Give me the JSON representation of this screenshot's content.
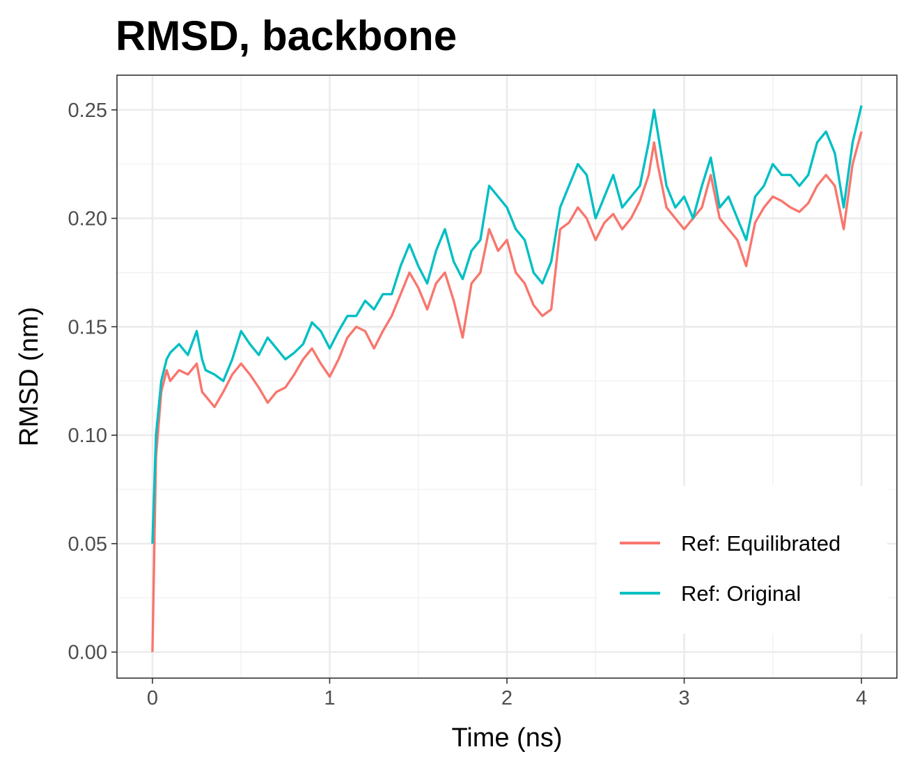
{
  "chart_data": {
    "type": "line",
    "title": "RMSD, backbone",
    "xlabel": "Time (ns)",
    "ylabel": "RMSD (nm)",
    "xlim": [
      -0.2,
      4.2
    ],
    "ylim": [
      -0.012,
      0.266
    ],
    "xticks": [
      0,
      1,
      2,
      3,
      4
    ],
    "xtick_labels": [
      "0",
      "1",
      "2",
      "3",
      "4"
    ],
    "yticks": [
      0.0,
      0.05,
      0.1,
      0.15,
      0.2,
      0.25
    ],
    "ytick_labels": [
      "0.00",
      "0.05",
      "0.10",
      "0.15",
      "0.20",
      "0.25"
    ],
    "grid": true,
    "legend_position": "bottom-right",
    "series": [
      {
        "name": "Ref: Equilibrated",
        "color": "#F8766D",
        "x": [
          0.0,
          0.02,
          0.05,
          0.08,
          0.1,
          0.15,
          0.2,
          0.25,
          0.28,
          0.3,
          0.35,
          0.4,
          0.45,
          0.5,
          0.55,
          0.6,
          0.65,
          0.7,
          0.75,
          0.8,
          0.85,
          0.9,
          0.95,
          1.0,
          1.05,
          1.1,
          1.15,
          1.2,
          1.25,
          1.3,
          1.35,
          1.4,
          1.45,
          1.5,
          1.55,
          1.6,
          1.65,
          1.7,
          1.75,
          1.8,
          1.85,
          1.9,
          1.95,
          2.0,
          2.05,
          2.1,
          2.15,
          2.2,
          2.25,
          2.3,
          2.35,
          2.4,
          2.45,
          2.5,
          2.55,
          2.6,
          2.65,
          2.7,
          2.75,
          2.8,
          2.83,
          2.85,
          2.9,
          2.95,
          3.0,
          3.05,
          3.1,
          3.15,
          3.2,
          3.25,
          3.3,
          3.35,
          3.4,
          3.45,
          3.5,
          3.55,
          3.6,
          3.65,
          3.7,
          3.75,
          3.8,
          3.85,
          3.9,
          3.95,
          4.0
        ],
        "values": [
          0.0,
          0.09,
          0.12,
          0.13,
          0.125,
          0.13,
          0.128,
          0.133,
          0.12,
          0.118,
          0.113,
          0.12,
          0.128,
          0.133,
          0.128,
          0.122,
          0.115,
          0.12,
          0.122,
          0.128,
          0.135,
          0.14,
          0.133,
          0.127,
          0.135,
          0.145,
          0.15,
          0.148,
          0.14,
          0.148,
          0.155,
          0.165,
          0.175,
          0.168,
          0.158,
          0.17,
          0.175,
          0.162,
          0.145,
          0.17,
          0.175,
          0.195,
          0.185,
          0.19,
          0.175,
          0.17,
          0.16,
          0.155,
          0.158,
          0.195,
          0.198,
          0.205,
          0.2,
          0.19,
          0.198,
          0.202,
          0.195,
          0.2,
          0.208,
          0.22,
          0.235,
          0.225,
          0.205,
          0.2,
          0.195,
          0.2,
          0.205,
          0.22,
          0.2,
          0.195,
          0.19,
          0.178,
          0.198,
          0.205,
          0.21,
          0.208,
          0.205,
          0.203,
          0.207,
          0.215,
          0.22,
          0.215,
          0.195,
          0.225,
          0.24
        ]
      },
      {
        "name": "Ref: Original",
        "color": "#00BFC4",
        "x": [
          0.0,
          0.02,
          0.05,
          0.08,
          0.1,
          0.15,
          0.2,
          0.25,
          0.28,
          0.3,
          0.35,
          0.4,
          0.45,
          0.5,
          0.55,
          0.6,
          0.65,
          0.7,
          0.75,
          0.8,
          0.85,
          0.9,
          0.95,
          1.0,
          1.05,
          1.1,
          1.15,
          1.2,
          1.25,
          1.3,
          1.35,
          1.4,
          1.45,
          1.5,
          1.55,
          1.6,
          1.65,
          1.7,
          1.75,
          1.8,
          1.85,
          1.9,
          1.95,
          2.0,
          2.05,
          2.1,
          2.15,
          2.2,
          2.25,
          2.3,
          2.35,
          2.4,
          2.45,
          2.5,
          2.55,
          2.6,
          2.65,
          2.7,
          2.75,
          2.8,
          2.83,
          2.85,
          2.9,
          2.95,
          3.0,
          3.05,
          3.1,
          3.15,
          3.2,
          3.25,
          3.3,
          3.35,
          3.4,
          3.45,
          3.5,
          3.55,
          3.6,
          3.65,
          3.7,
          3.75,
          3.8,
          3.85,
          3.9,
          3.95,
          4.0
        ],
        "values": [
          0.05,
          0.1,
          0.125,
          0.135,
          0.138,
          0.142,
          0.137,
          0.148,
          0.135,
          0.13,
          0.128,
          0.125,
          0.135,
          0.148,
          0.142,
          0.137,
          0.145,
          0.14,
          0.135,
          0.138,
          0.142,
          0.152,
          0.148,
          0.14,
          0.148,
          0.155,
          0.155,
          0.162,
          0.158,
          0.165,
          0.165,
          0.178,
          0.188,
          0.178,
          0.17,
          0.185,
          0.195,
          0.18,
          0.172,
          0.185,
          0.19,
          0.215,
          0.21,
          0.205,
          0.195,
          0.19,
          0.175,
          0.17,
          0.18,
          0.205,
          0.215,
          0.225,
          0.22,
          0.2,
          0.21,
          0.22,
          0.205,
          0.21,
          0.215,
          0.235,
          0.25,
          0.24,
          0.215,
          0.205,
          0.21,
          0.2,
          0.215,
          0.228,
          0.205,
          0.21,
          0.2,
          0.19,
          0.21,
          0.215,
          0.225,
          0.22,
          0.22,
          0.215,
          0.22,
          0.235,
          0.24,
          0.23,
          0.205,
          0.235,
          0.252
        ]
      }
    ]
  }
}
